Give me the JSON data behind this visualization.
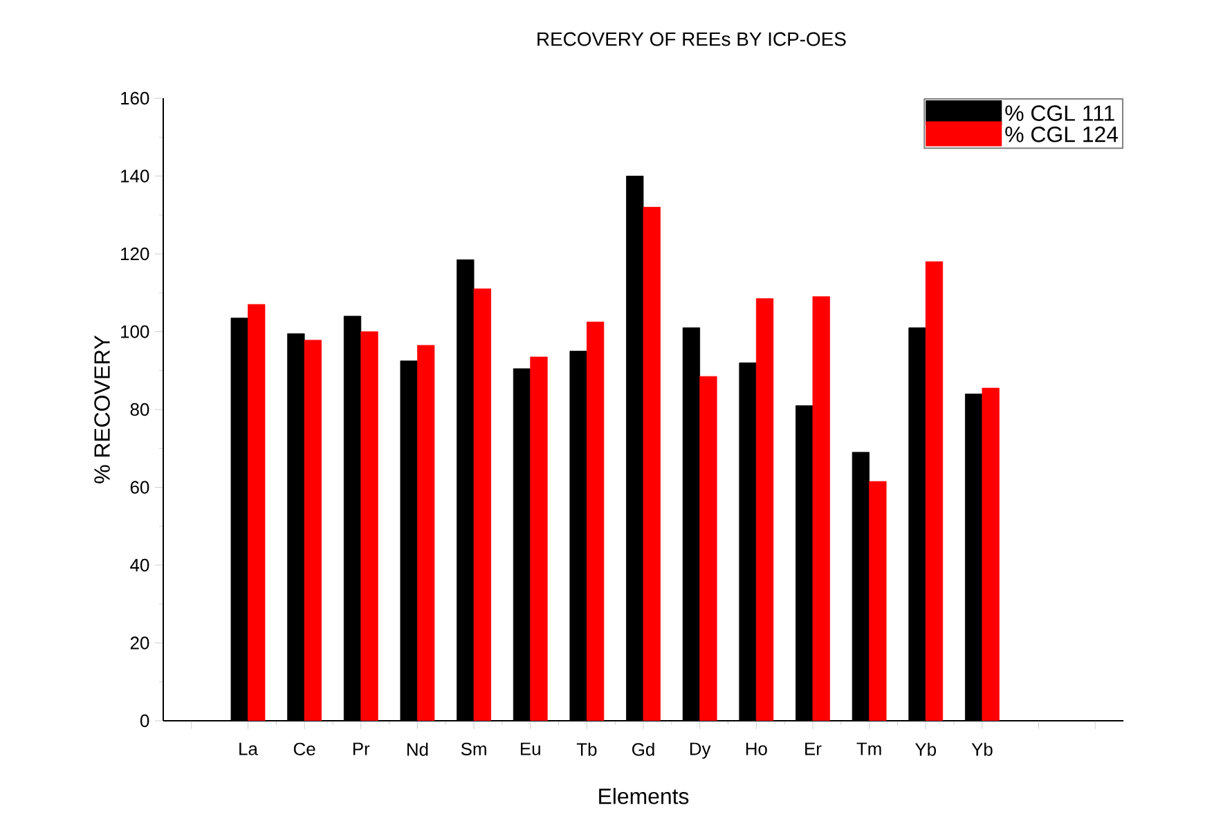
{
  "chart_data": {
    "type": "bar",
    "title": "RECOVERY OF REEs BY ICP-OES",
    "xlabel": "Elements",
    "ylabel": "% RECOVERY",
    "categories": [
      "La",
      "Ce",
      "Pr",
      "Nd",
      "Sm",
      "Eu",
      "Tb",
      "Gd",
      "Dy",
      "Ho",
      "Er",
      "Tm",
      "Yb",
      "Yb"
    ],
    "series": [
      {
        "name": "% CGL 111",
        "color": "#000000",
        "values": [
          103.5,
          99.5,
          104,
          92.5,
          118.5,
          90.5,
          95,
          140,
          101,
          92,
          81,
          69,
          101,
          84
        ]
      },
      {
        "name": "% CGL 124",
        "color": "#ff0000",
        "values": [
          107,
          97.8,
          100,
          96.5,
          111,
          93.5,
          102.5,
          132,
          88.5,
          108.5,
          109,
          61.5,
          118,
          85.5
        ]
      }
    ],
    "ylim": [
      0,
      160
    ],
    "yticks": [
      0,
      20,
      40,
      60,
      80,
      100,
      120,
      140,
      160
    ],
    "grid": false,
    "legend": "top right"
  }
}
